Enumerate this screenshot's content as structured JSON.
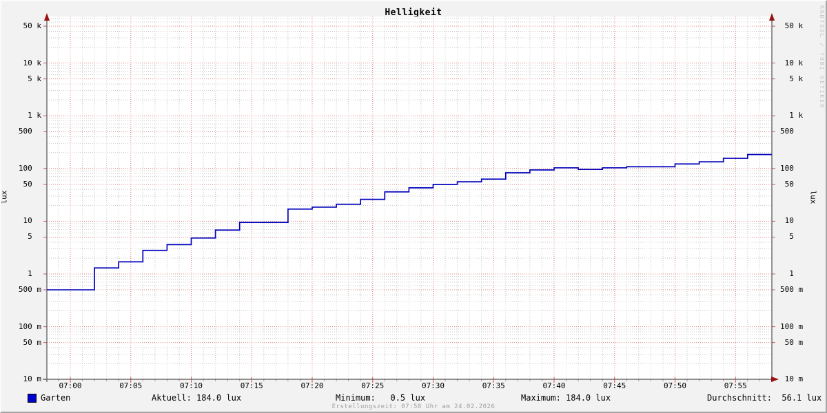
{
  "title": "Helligkeit",
  "watermark": "RRDTOOL / TOBI OETIKER",
  "footer": "Erstellungszeit: 07:58 Uhr am 24.02.2026",
  "colors": {
    "line": "#0000bb",
    "legend_swatch": "#0000cc",
    "grid_minor": "#c9c9c9",
    "grid_major": "#e08080",
    "axis": "#5c5c5c",
    "arrow": "#991111",
    "plot_background": "#ffffff",
    "outer_background": "#f2f2f2"
  },
  "legend": {
    "series_label": "Garten",
    "aktuell": "Aktuell: 184.0 lux",
    "minimum": "Minimum:   0.5 lux",
    "maximum": "Maximum: 184.0 lux",
    "durchschnitt": "Durchschnitt:  56.1 lux"
  },
  "chart_data": {
    "type": "line",
    "style": "step",
    "title": "Helligkeit",
    "ylabel_left": "lux",
    "ylabel_right": "lux",
    "yscale": "log",
    "ylim": [
      0.01,
      76000
    ],
    "grid": true,
    "legend_position": "bottom",
    "x_ticks": [
      {
        "label": "07:00",
        "minute": 0
      },
      {
        "label": "07:05",
        "minute": 5
      },
      {
        "label": "07:10",
        "minute": 10
      },
      {
        "label": "07:15",
        "minute": 15
      },
      {
        "label": "07:20",
        "minute": 20
      },
      {
        "label": "07:25",
        "minute": 25
      },
      {
        "label": "07:30",
        "minute": 30
      },
      {
        "label": "07:35",
        "minute": 35
      },
      {
        "label": "07:40",
        "minute": 40
      },
      {
        "label": "07:45",
        "minute": 45
      },
      {
        "label": "07:50",
        "minute": 50
      },
      {
        "label": "07:55",
        "minute": 55
      }
    ],
    "y_ticks": [
      {
        "label": " 50 k",
        "value": 50000
      },
      {
        "label": " 10 k",
        "value": 10000
      },
      {
        "label": "  5 k",
        "value": 5000
      },
      {
        "label": "  1 k",
        "value": 1000
      },
      {
        "label": "500  ",
        "value": 500
      },
      {
        "label": "100  ",
        "value": 100
      },
      {
        "label": " 50  ",
        "value": 50
      },
      {
        "label": " 10  ",
        "value": 10
      },
      {
        "label": "  5  ",
        "value": 5
      },
      {
        "label": "  1  ",
        "value": 1
      },
      {
        "label": "500 m",
        "value": 0.5
      },
      {
        "label": "100 m",
        "value": 0.1
      },
      {
        "label": " 50 m",
        "value": 0.05
      },
      {
        "label": " 10 m",
        "value": 0.01
      }
    ],
    "series": [
      {
        "name": "Garten",
        "color": "#0000bb",
        "steps": [
          [
            "06:58",
            0.5
          ],
          [
            "07:02",
            1.3
          ],
          [
            "07:04",
            1.7
          ],
          [
            "07:06",
            2.8
          ],
          [
            "07:08",
            3.6
          ],
          [
            "07:10",
            4.8
          ],
          [
            "07:12",
            6.8
          ],
          [
            "07:14",
            9.5
          ],
          [
            "07:18",
            17
          ],
          [
            "07:20",
            18.5
          ],
          [
            "07:22",
            21
          ],
          [
            "07:24",
            26
          ],
          [
            "07:26",
            36
          ],
          [
            "07:28",
            43
          ],
          [
            "07:30",
            50
          ],
          [
            "07:32",
            56
          ],
          [
            "07:34",
            63
          ],
          [
            "07:36",
            83
          ],
          [
            "07:38",
            94
          ],
          [
            "07:40",
            103
          ],
          [
            "07:42",
            96
          ],
          [
            "07:44",
            103
          ],
          [
            "07:46",
            108
          ],
          [
            "07:50",
            122
          ],
          [
            "07:52",
            134
          ],
          [
            "07:54",
            156
          ],
          [
            "07:56",
            184
          ]
        ],
        "end_time": "07:58"
      }
    ],
    "stats": {
      "current_lux": 184.0,
      "min_lux": 0.5,
      "max_lux": 184.0,
      "avg_lux": 56.1
    }
  }
}
